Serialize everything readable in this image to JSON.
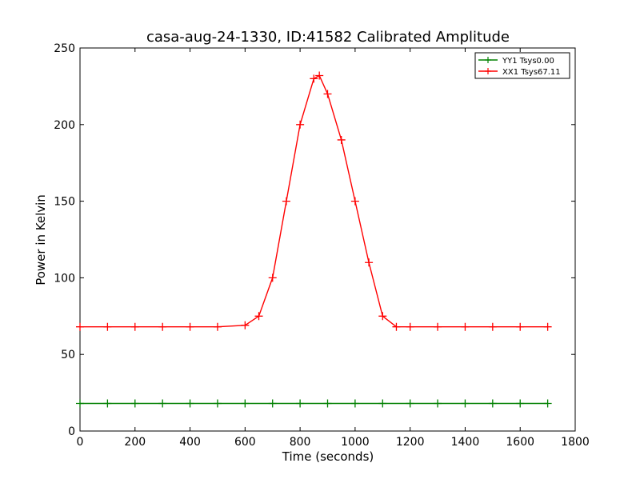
{
  "chart_data": {
    "type": "line",
    "title": "casa-aug-24-1330, ID:41582 Calibrated Amplitude",
    "xlabel": "Time (seconds)",
    "ylabel": "Power in Kelvin",
    "xlim": [
      0,
      1800
    ],
    "ylim": [
      0,
      250
    ],
    "x_ticks": [
      0,
      200,
      400,
      600,
      800,
      1000,
      1200,
      1400,
      1600,
      1800
    ],
    "y_ticks": [
      0,
      50,
      100,
      150,
      200,
      250
    ],
    "x_tick_labels": [
      "0",
      "200",
      "400",
      "600",
      "800",
      "1000",
      "1200",
      "1400",
      "1600",
      "1800"
    ],
    "y_tick_labels": [
      "0",
      "50",
      "100",
      "150",
      "200",
      "250"
    ],
    "grid": false,
    "legend_position": "top-right",
    "marker": "+",
    "series": [
      {
        "name": "YY1 Tsys0.00",
        "color": "#008000",
        "x": [
          0,
          100,
          200,
          300,
          400,
          500,
          600,
          700,
          800,
          900,
          1000,
          1100,
          1200,
          1300,
          1400,
          1500,
          1600,
          1700
        ],
        "y": [
          18,
          18,
          18,
          18,
          18,
          18,
          18,
          18,
          18,
          18,
          18,
          18,
          18,
          18,
          18,
          18,
          18,
          18
        ]
      },
      {
        "name": "XX1 Tsys67.11",
        "color": "#ff0000",
        "x": [
          0,
          100,
          200,
          300,
          400,
          500,
          600,
          650,
          700,
          750,
          800,
          850,
          870,
          900,
          950,
          1000,
          1050,
          1100,
          1150,
          1200,
          1300,
          1400,
          1500,
          1600,
          1700
        ],
        "y": [
          68,
          68,
          68,
          68,
          68,
          68,
          69,
          75,
          100,
          150,
          200,
          230,
          232,
          220,
          190,
          150,
          110,
          75,
          68,
          68,
          68,
          68,
          68,
          68,
          68
        ]
      }
    ]
  }
}
